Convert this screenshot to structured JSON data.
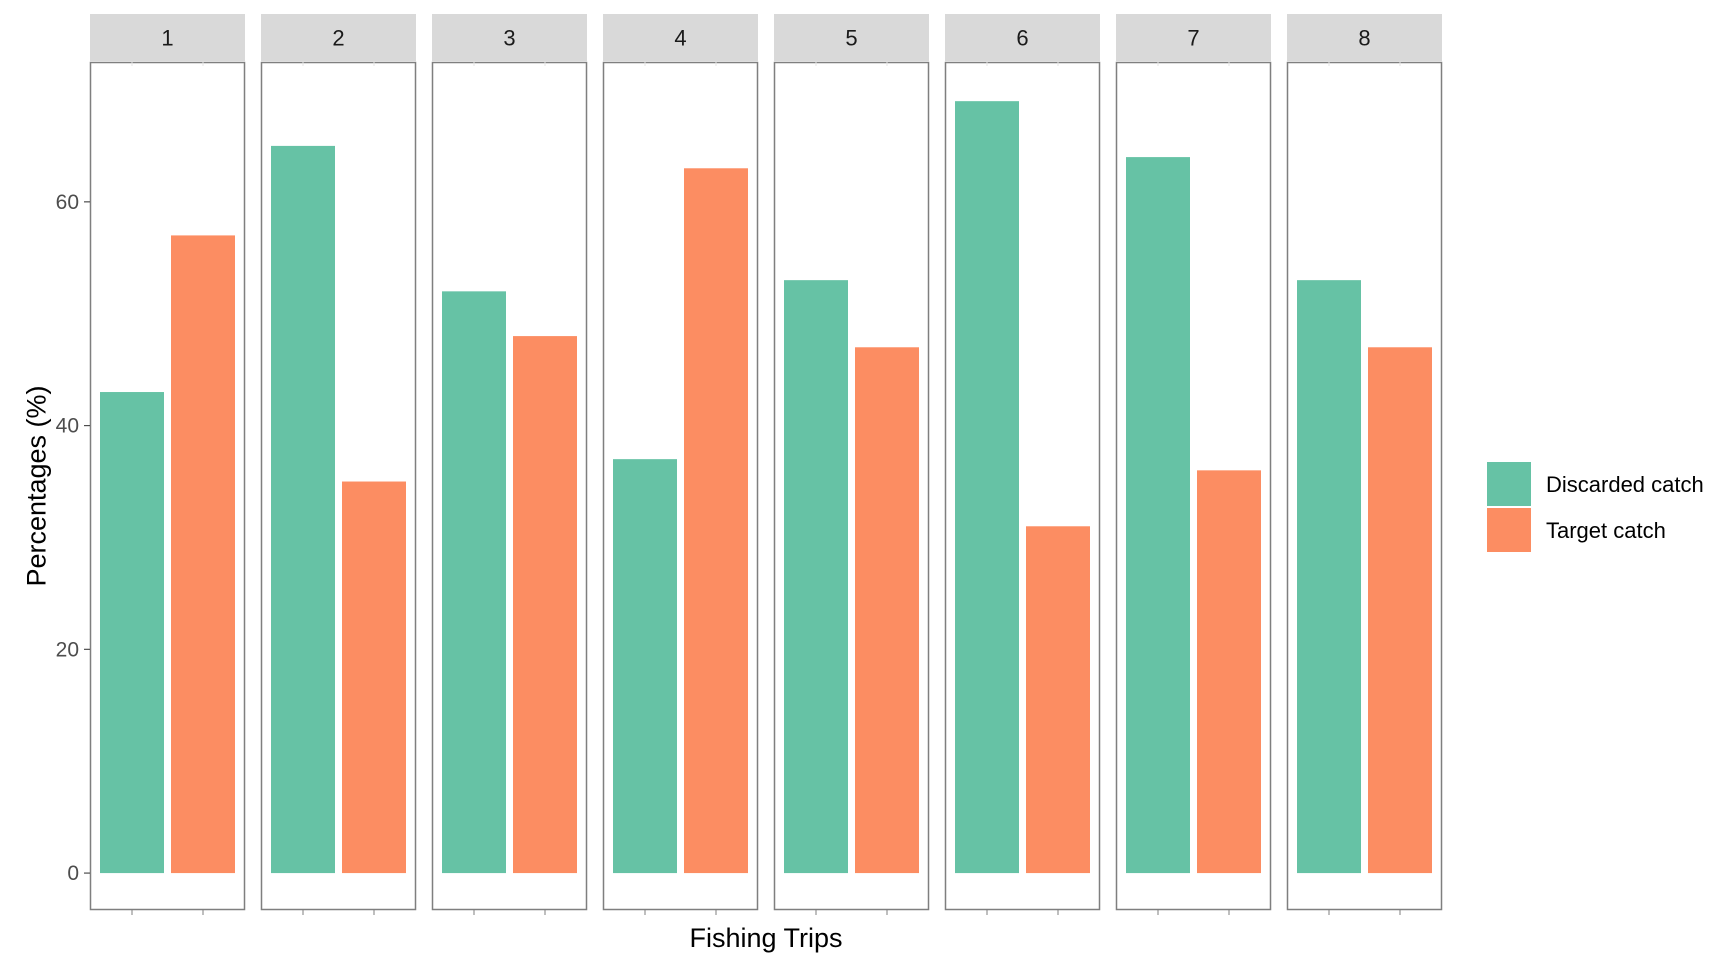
{
  "chart_data": {
    "type": "bar",
    "facets": [
      "1",
      "2",
      "3",
      "4",
      "5",
      "6",
      "7",
      "8"
    ],
    "series": [
      {
        "name": "Discarded catch",
        "color": "#66c2a5",
        "values": [
          43,
          65,
          52,
          37,
          53,
          69,
          64,
          53
        ]
      },
      {
        "name": "Target catch",
        "color": "#fc8d62",
        "values": [
          57,
          35,
          48,
          63,
          47,
          31,
          36,
          47
        ]
      }
    ],
    "title": "",
    "xlabel": "Fishing Trips",
    "ylabel": "Percentages (%)",
    "ylim": [
      -3.3,
      72.5
    ],
    "yticks": [
      0,
      20,
      40,
      60
    ],
    "ytick_labels": [
      "0",
      "20",
      "40",
      "60"
    ],
    "grid": false,
    "legend_position": "right",
    "legend_title": ""
  },
  "colors": {
    "strip_background": "#d9d9d9",
    "panel_border": "#7f7f7f",
    "tick_color": "#4d4d4d"
  }
}
